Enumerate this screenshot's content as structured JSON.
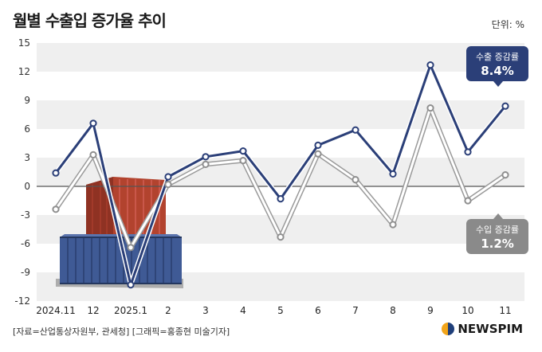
{
  "header": {
    "title": "월별 수출입 증가율 추이",
    "unit": "단위: %"
  },
  "footer": {
    "source": "[자료=산업통상자원부, 관세청] [그래픽=홍종현 미술기자]",
    "brand": "NEWSPIM"
  },
  "callouts": {
    "export": {
      "label": "수출 증감률",
      "value": "8.4%"
    },
    "import": {
      "label": "수입 증감률",
      "value": "1.2%"
    }
  },
  "colors": {
    "export": "#2b3f78",
    "import": "#ffffff",
    "band": "#efefef",
    "zero": "#555555"
  },
  "chart_data": {
    "type": "line",
    "categories": [
      "2024.11",
      "12",
      "2025.1",
      "2",
      "3",
      "4",
      "5",
      "6",
      "7",
      "8",
      "9",
      "10",
      "11"
    ],
    "series": [
      {
        "name": "수출 증감률",
        "values": [
          1.4,
          6.6,
          -10.3,
          1.0,
          3.1,
          3.7,
          -1.3,
          4.3,
          5.9,
          1.3,
          12.7,
          3.6,
          8.4
        ]
      },
      {
        "name": "수입 증감률",
        "values": [
          -2.4,
          3.3,
          -6.4,
          0.2,
          2.3,
          2.7,
          -5.3,
          3.4,
          0.7,
          -4.0,
          8.2,
          -1.5,
          1.2
        ]
      }
    ],
    "yticks": [
      15,
      12,
      9,
      6,
      3,
      0,
      -3,
      -6,
      -9,
      -12
    ],
    "ylim": [
      -12,
      15
    ],
    "grid": "alternating bands"
  }
}
